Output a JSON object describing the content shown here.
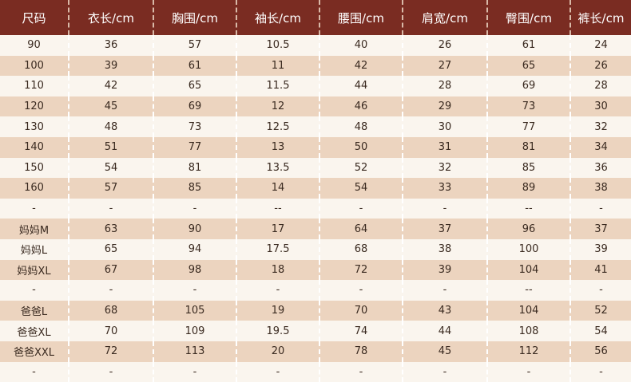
{
  "table": {
    "headers": [
      "尺码",
      "衣长/cm",
      "胸围/cm",
      "袖长/cm",
      "腰围/cm",
      "肩宽/cm",
      "臀围/cm",
      "裤长/cm"
    ],
    "rows": [
      [
        "90",
        "36",
        "57",
        "10.5",
        "40",
        "26",
        "61",
        "24"
      ],
      [
        "100",
        "39",
        "61",
        "11",
        "42",
        "27",
        "65",
        "26"
      ],
      [
        "110",
        "42",
        "65",
        "11.5",
        "44",
        "28",
        "69",
        "28"
      ],
      [
        "120",
        "45",
        "69",
        "12",
        "46",
        "29",
        "73",
        "30"
      ],
      [
        "130",
        "48",
        "73",
        "12.5",
        "48",
        "30",
        "77",
        "32"
      ],
      [
        "140",
        "51",
        "77",
        "13",
        "50",
        "31",
        "81",
        "34"
      ],
      [
        "150",
        "54",
        "81",
        "13.5",
        "52",
        "32",
        "85",
        "36"
      ],
      [
        "160",
        "57",
        "85",
        "14",
        "54",
        "33",
        "89",
        "38"
      ],
      [
        "-",
        "-",
        "-",
        "--",
        "-",
        "-",
        "--",
        "-"
      ],
      [
        "妈妈M",
        "63",
        "90",
        "17",
        "64",
        "37",
        "96",
        "37"
      ],
      [
        "妈妈L",
        "65",
        "94",
        "17.5",
        "68",
        "38",
        "100",
        "39"
      ],
      [
        "妈妈XL",
        "67",
        "98",
        "18",
        "72",
        "39",
        "104",
        "41"
      ],
      [
        "-",
        "-",
        "-",
        "-",
        "-",
        "-",
        "--",
        "-"
      ],
      [
        "爸爸L",
        "68",
        "105",
        "19",
        "70",
        "43",
        "104",
        "52"
      ],
      [
        "爸爸XL",
        "70",
        "109",
        "19.5",
        "74",
        "44",
        "108",
        "54"
      ],
      [
        "爸爸XXL",
        "72",
        "113",
        "20",
        "78",
        "45",
        "112",
        "56"
      ],
      [
        "-",
        "-",
        "-",
        "-",
        "-",
        "-",
        "-",
        "-"
      ]
    ]
  },
  "colors": {
    "header_bg": "#7a2c22",
    "header_text": "#ffffff",
    "row_light": "#faf5ee",
    "row_tan": "#ecd4bf",
    "cell_text": "#3a2a20"
  }
}
